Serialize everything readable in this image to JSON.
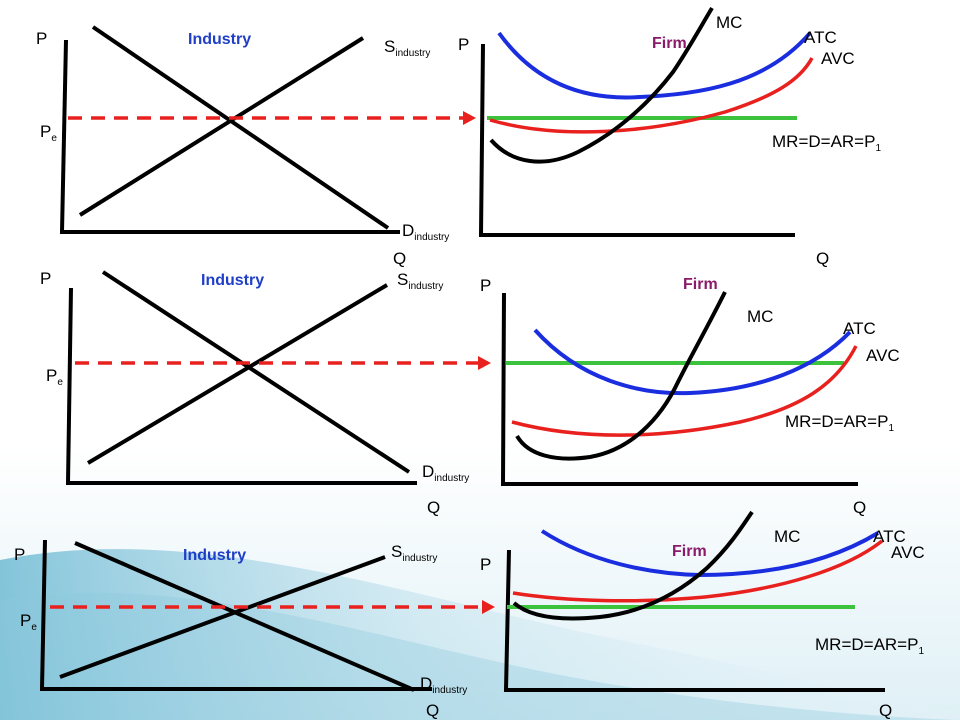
{
  "colors": {
    "industry_title": "#1f3fc8",
    "firm_title": "#8b1a6b",
    "atc": "#1a2ee0",
    "avc": "#e8201e",
    "mr": "#3cc23c",
    "pe_line": "#e8201e",
    "curves": "#000000"
  },
  "panels": [
    {
      "industry": {
        "title": "Industry",
        "p_axis": "P",
        "q_axis": "Q",
        "pe": {
          "main": "P",
          "sub": "e"
        },
        "supply": {
          "main": "S",
          "sub": "industry"
        },
        "demand": {
          "main": "D",
          "sub": "industry"
        }
      },
      "firm": {
        "title": "Firm",
        "p_axis": "P",
        "q_axis": "Q",
        "mc": "MC",
        "atc": "ATC",
        "avc": "AVC",
        "mr": {
          "main": "MR=D=AR=P",
          "sub": "1"
        }
      }
    },
    {
      "industry": {
        "title": "Industry",
        "p_axis": "P",
        "q_axis": "Q",
        "pe": {
          "main": "P",
          "sub": "e"
        },
        "supply": {
          "main": "S",
          "sub": "industry"
        },
        "demand": {
          "main": "D",
          "sub": "industry"
        }
      },
      "firm": {
        "title": "Firm",
        "p_axis": "P",
        "q_axis": "Q",
        "mc": "MC",
        "atc": "ATC",
        "avc": "AVC",
        "mr": {
          "main": "MR=D=AR=P",
          "sub": "1"
        }
      }
    },
    {
      "industry": {
        "title": "Industry",
        "p_axis": "P",
        "q_axis": "Q",
        "pe": {
          "main": "P",
          "sub": "e"
        },
        "supply": {
          "main": "S",
          "sub": "industry"
        },
        "demand": {
          "main": "D",
          "sub": "industry"
        }
      },
      "firm": {
        "title": "Firm",
        "p_axis": "P",
        "q_axis": "Q",
        "mc": "MC",
        "atc": "ATC",
        "avc": "AVC",
        "mr": {
          "main": "MR=D=AR=P",
          "sub": "1"
        }
      }
    }
  ]
}
